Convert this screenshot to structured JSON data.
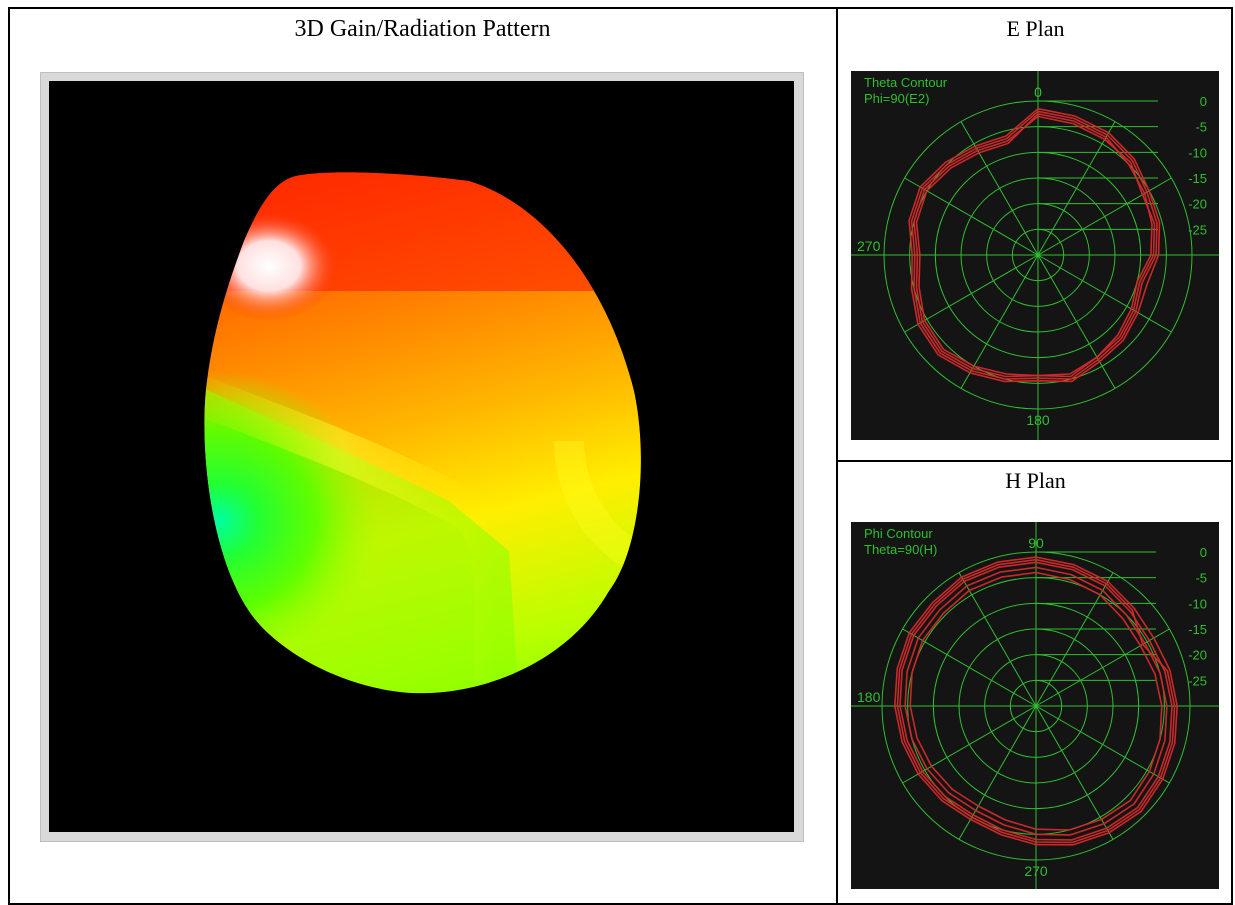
{
  "layout_title_3d": "3D Gain/Radiation Pattern",
  "layout_title_e": "E Plan",
  "layout_title_h": "H Plan",
  "colors": {
    "grid": "#2fbf2f",
    "trace": "#d42a2a",
    "plot_background": "#141414",
    "viewport_background": "#000000"
  },
  "chart_data": [
    {
      "type": "3d-surface",
      "title": "3D Gain/Radiation Pattern",
      "colormap": [
        "#00ff99",
        "#33ff00",
        "#ffff00",
        "#ff9900",
        "#ff0000",
        "#ffffff"
      ]
    },
    {
      "type": "polar",
      "title": "E Plan",
      "contour_label": "Theta Contour",
      "cut_label": "Phi=90(E2)",
      "angle_labels": {
        "top": "0",
        "left": "270",
        "bottom": "180"
      },
      "db_ticks": [
        "0",
        "-5",
        "-10",
        "-15",
        "-20",
        "-25"
      ],
      "rlim": [
        -30,
        0
      ],
      "series": [
        {
          "values": [
            -2,
            -2.5,
            -3,
            -4,
            -5.5,
            -6,
            -7,
            -9,
            -8,
            -7,
            -6.5,
            -5,
            -6,
            -5,
            -4,
            -3,
            -3.5,
            -5,
            -6,
            -4.5,
            -4,
            -5,
            -6,
            -6.5
          ]
        },
        {
          "values": [
            -2.5,
            -3,
            -3.5,
            -5,
            -6,
            -7,
            -8,
            -10,
            -9,
            -8,
            -7,
            -6,
            -6.5,
            -6,
            -5,
            -4,
            -4.5,
            -6,
            -7,
            -5.5,
            -5,
            -6,
            -7,
            -7.5
          ]
        },
        {
          "values": [
            -1.5,
            -2,
            -2.5,
            -3.5,
            -5,
            -5.5,
            -6.5,
            -8,
            -7.5,
            -6.5,
            -6,
            -4.5,
            -5.5,
            -4.5,
            -3.5,
            -2.5,
            -3,
            -4.5,
            -5.5,
            -4,
            -3.5,
            -4.5,
            -5.5,
            -6
          ]
        },
        {
          "values": [
            -3,
            -3.5,
            -4,
            -4.5,
            -6.5,
            -6.5,
            -7.5,
            -9.5,
            -8.5,
            -7.5,
            -7,
            -5.5,
            -6.5,
            -5.5,
            -4.5,
            -3.5,
            -4,
            -5.5,
            -6.5,
            -5,
            -4.5,
            -5.5,
            -6.5,
            -7
          ]
        }
      ]
    },
    {
      "type": "polar",
      "title": "H Plan",
      "contour_label": "Phi Contour",
      "cut_label": "Theta=90(H)",
      "angle_labels": {
        "top": "90",
        "left": "180",
        "bottom": "270"
      },
      "db_ticks": [
        "0",
        "-5",
        "-10",
        "-15",
        "-20",
        "-25"
      ],
      "rlim": [
        -30,
        0
      ],
      "series": [
        {
          "values": [
            -1,
            -1.5,
            -2,
            -3,
            -3.5,
            -3,
            -2.5,
            -2,
            -1.5,
            -1,
            -1.5,
            -2,
            -3,
            -4,
            -4.5,
            -4,
            -3.5,
            -3,
            -2.5,
            -2,
            -1.5,
            -1.5,
            -1,
            -1
          ]
        },
        {
          "values": [
            -2,
            -2.5,
            -3,
            -4,
            -4.5,
            -4,
            -3.5,
            -3,
            -2.5,
            -2,
            -2.5,
            -3,
            -4,
            -5,
            -5.5,
            -5,
            -4.5,
            -4,
            -3.5,
            -3,
            -2.5,
            -2.5,
            -2,
            -2
          ]
        },
        {
          "values": [
            -3,
            -3.5,
            -4,
            -5,
            -5.5,
            -5,
            -4.5,
            -4,
            -3.5,
            -3,
            -3.5,
            -4,
            -5,
            -6,
            -6.5,
            -6,
            -5.5,
            -5,
            -4.5,
            -4,
            -3.5,
            -3.5,
            -3,
            -3
          ]
        },
        {
          "values": [
            -1.5,
            -2,
            -2.5,
            -3.5,
            -6,
            -3.5,
            -3,
            -2.5,
            -2,
            -1.5,
            -2,
            -2.5,
            -3.5,
            -4.5,
            -5,
            -4.5,
            -4,
            -3.5,
            -3,
            -2.5,
            -2,
            -2,
            -1.5,
            -1.5
          ]
        },
        {
          "values": [
            -4,
            -4.5,
            -5,
            -6,
            -6.5,
            -6,
            -5.5,
            -5,
            -4.5,
            -4,
            -4.5,
            -5,
            -6,
            -7,
            -7.5,
            -7,
            -6.5,
            -6,
            -5.5,
            -5,
            -4.5,
            -4.5,
            -4,
            -4
          ]
        }
      ]
    }
  ]
}
